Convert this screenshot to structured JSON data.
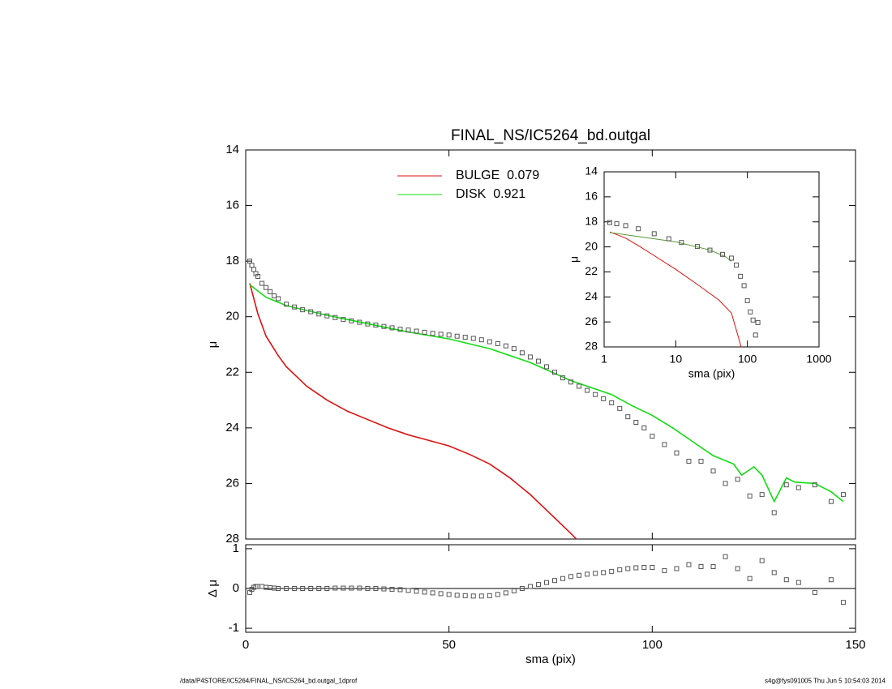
{
  "chart_data": [
    {
      "type": "line",
      "title": "FINAL_NS/IC5264_bd.outgal",
      "ylabel": "μ",
      "xlim": [
        0,
        150
      ],
      "ylim": [
        14,
        28
      ],
      "y_reversed": true,
      "yticks": [
        14,
        16,
        18,
        20,
        22,
        24,
        26,
        28
      ],
      "points": {
        "color": "#555555",
        "x": [
          1,
          1.5,
          2,
          2.5,
          3,
          4,
          5,
          6,
          7,
          8,
          10,
          12,
          14,
          16,
          18,
          20,
          22,
          24,
          26,
          28,
          30,
          32,
          34,
          36,
          38,
          40,
          42,
          44,
          46,
          48,
          50,
          52,
          54,
          56,
          58,
          60,
          62,
          64,
          66,
          68,
          70,
          72,
          74,
          76,
          78,
          80,
          82,
          84,
          86,
          88,
          90,
          92,
          94,
          96,
          98,
          100,
          103,
          106,
          109,
          112,
          115,
          118,
          121,
          124,
          127,
          130,
          133,
          136,
          140,
          144,
          147
        ],
        "values": [
          18.0,
          18.15,
          18.3,
          18.45,
          18.55,
          18.8,
          18.95,
          19.1,
          19.25,
          19.35,
          19.55,
          19.65,
          19.75,
          19.82,
          19.9,
          19.97,
          20.03,
          20.1,
          20.15,
          20.2,
          20.26,
          20.3,
          20.35,
          20.4,
          20.45,
          20.48,
          20.52,
          20.56,
          20.6,
          20.63,
          20.66,
          20.7,
          20.74,
          20.78,
          20.83,
          20.9,
          20.97,
          21.05,
          21.15,
          21.3,
          21.45,
          21.6,
          21.8,
          22.0,
          22.2,
          22.35,
          22.5,
          22.65,
          22.8,
          22.95,
          23.1,
          23.3,
          23.6,
          23.8,
          24.0,
          24.3,
          24.6,
          24.9,
          25.2,
          25.2,
          25.55,
          26.0,
          25.85,
          26.45,
          26.4,
          27.05,
          26.05,
          26.15,
          26.05,
          26.65,
          26.4
        ]
      },
      "series": [
        {
          "name": "BULGE  0.079",
          "color": "#dd1111",
          "x": [
            1,
            3,
            5,
            8,
            10,
            15,
            20,
            25,
            30,
            35,
            40,
            45,
            50,
            55,
            60,
            65,
            70,
            75,
            80,
            82
          ],
          "values": [
            18.8,
            19.9,
            20.7,
            21.4,
            21.8,
            22.5,
            23.0,
            23.4,
            23.7,
            24.0,
            24.25,
            24.45,
            24.65,
            24.95,
            25.3,
            25.8,
            26.4,
            27.1,
            27.8,
            28.1
          ]
        },
        {
          "name": "DISK  0.921",
          "color": "#11dd11",
          "x": [
            1,
            5,
            10,
            20,
            30,
            40,
            50,
            60,
            70,
            80,
            90,
            95,
            100,
            105,
            110,
            115,
            120,
            122,
            125,
            127,
            130,
            133,
            135,
            140,
            144,
            147
          ],
          "values": [
            18.85,
            19.3,
            19.6,
            19.95,
            20.25,
            20.55,
            20.8,
            21.15,
            21.65,
            22.3,
            22.8,
            23.2,
            23.55,
            24.0,
            24.5,
            25.0,
            25.3,
            25.7,
            25.4,
            25.7,
            26.65,
            25.8,
            25.95,
            26.0,
            26.3,
            26.65
          ]
        }
      ]
    },
    {
      "type": "line",
      "xlabel": "sma (pix)",
      "ylabel": "μ",
      "xlog": true,
      "xlim": [
        1,
        1000
      ],
      "xticks": [
        1,
        10,
        100,
        1000
      ],
      "ylim": [
        14,
        28
      ],
      "y_reversed": true,
      "yticks": [
        14,
        16,
        18,
        20,
        22,
        24,
        26,
        28
      ],
      "points": {
        "color": "#555555",
        "x": [
          1.2,
          1.5,
          2,
          3,
          5,
          8,
          12,
          20,
          30,
          45,
          60,
          70,
          80,
          90,
          100,
          110,
          120,
          130,
          140
        ],
        "values": [
          18.05,
          18.15,
          18.3,
          18.55,
          18.95,
          19.35,
          19.65,
          19.97,
          20.26,
          20.6,
          20.9,
          21.45,
          22.35,
          23.1,
          24.3,
          25.2,
          25.85,
          27.05,
          26.05
        ]
      },
      "series": [
        {
          "color": "#dd1111",
          "x": [
            1.2,
            2,
            3,
            5,
            10,
            20,
            40,
            60,
            80,
            85
          ],
          "values": [
            18.8,
            19.3,
            19.9,
            20.7,
            21.8,
            23.0,
            24.25,
            25.3,
            27.8,
            28.5
          ]
        },
        {
          "color": "#559933",
          "x": [
            1.2,
            10,
            30,
            50,
            60
          ],
          "values": [
            18.85,
            19.6,
            20.25,
            20.8,
            21.15
          ]
        }
      ]
    },
    {
      "type": "scatter",
      "xlabel": "sma (pix)",
      "ylabel": "Δ μ",
      "xlim": [
        0,
        150
      ],
      "xticks": [
        0,
        50,
        100,
        150
      ],
      "ylim": [
        -1.1,
        1.1
      ],
      "yticks": [
        -1,
        0,
        1
      ],
      "color": "#555555",
      "x": [
        1,
        1.5,
        2,
        2.5,
        3,
        4,
        5,
        6,
        7,
        8,
        10,
        12,
        14,
        16,
        18,
        20,
        22,
        24,
        26,
        28,
        30,
        32,
        34,
        36,
        38,
        40,
        42,
        44,
        46,
        48,
        50,
        52,
        54,
        56,
        58,
        60,
        62,
        64,
        66,
        68,
        70,
        72,
        74,
        76,
        78,
        80,
        82,
        84,
        86,
        88,
        90,
        92,
        94,
        96,
        98,
        100,
        103,
        106,
        109,
        112,
        115,
        118,
        121,
        124,
        127,
        130,
        133,
        136,
        140,
        144,
        147
      ],
      "values": [
        -0.1,
        -0.02,
        0.03,
        0.05,
        0.05,
        0.05,
        0.03,
        0.02,
        0.01,
        0,
        0,
        0,
        0,
        0,
        0,
        0,
        0.01,
        0.01,
        0.01,
        0.01,
        0,
        0,
        -0.01,
        -0.02,
        -0.03,
        -0.05,
        -0.07,
        -0.09,
        -0.11,
        -0.13,
        -0.15,
        -0.17,
        -0.18,
        -0.19,
        -0.19,
        -0.18,
        -0.15,
        -0.11,
        -0.06,
        0,
        0.05,
        0.1,
        0.15,
        0.2,
        0.25,
        0.3,
        0.33,
        0.36,
        0.38,
        0.4,
        0.43,
        0.47,
        0.5,
        0.52,
        0.53,
        0.53,
        0.45,
        0.5,
        0.6,
        0.55,
        0.55,
        0.8,
        0.5,
        0.25,
        0.7,
        0.4,
        0.22,
        0.15,
        -0.1,
        0.22,
        -0.35
      ]
    }
  ],
  "footer": {
    "left": "/data/P4STORE/IC5264/FINAL_NS/IC5264_bd.outgal_1dprof",
    "right": "s4g@fys091005  Thu Jun  5 10:54:03 2014"
  }
}
